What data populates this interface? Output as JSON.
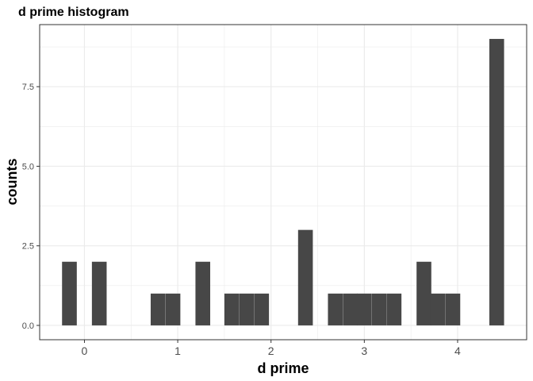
{
  "chart_data": {
    "type": "bar",
    "title": "d prime histogram",
    "xlabel": "d prime",
    "ylabel": "counts",
    "xlim": [
      -0.48,
      4.74
    ],
    "ylim": [
      -0.45,
      9.45
    ],
    "bin_width": 0.158,
    "grid": true,
    "xticks": [
      0,
      1,
      2,
      3,
      4
    ],
    "xtick_labels": [
      "0",
      "1",
      "2",
      "3",
      "4"
    ],
    "yticks": [
      0,
      2.5,
      5,
      7.5
    ],
    "ytick_labels": [
      "0.0",
      "2.5",
      "5.0",
      "7.5"
    ],
    "bins": [
      {
        "x0": -0.24,
        "count": 2
      },
      {
        "x0": 0.08,
        "count": 2
      },
      {
        "x0": 0.71,
        "count": 1
      },
      {
        "x0": 0.87,
        "count": 1
      },
      {
        "x0": 1.19,
        "count": 2
      },
      {
        "x0": 1.5,
        "count": 1
      },
      {
        "x0": 1.66,
        "count": 1
      },
      {
        "x0": 1.82,
        "count": 1
      },
      {
        "x0": 2.29,
        "count": 3
      },
      {
        "x0": 2.61,
        "count": 1
      },
      {
        "x0": 2.77,
        "count": 1
      },
      {
        "x0": 2.92,
        "count": 1
      },
      {
        "x0": 3.08,
        "count": 1
      },
      {
        "x0": 3.24,
        "count": 1
      },
      {
        "x0": 3.56,
        "count": 2
      },
      {
        "x0": 3.71,
        "count": 1
      },
      {
        "x0": 3.87,
        "count": 1
      },
      {
        "x0": 4.34,
        "count": 9
      }
    ],
    "bar_color": "#474747",
    "grid_color": "#ebebeb",
    "panel_border_color": "#333333"
  }
}
